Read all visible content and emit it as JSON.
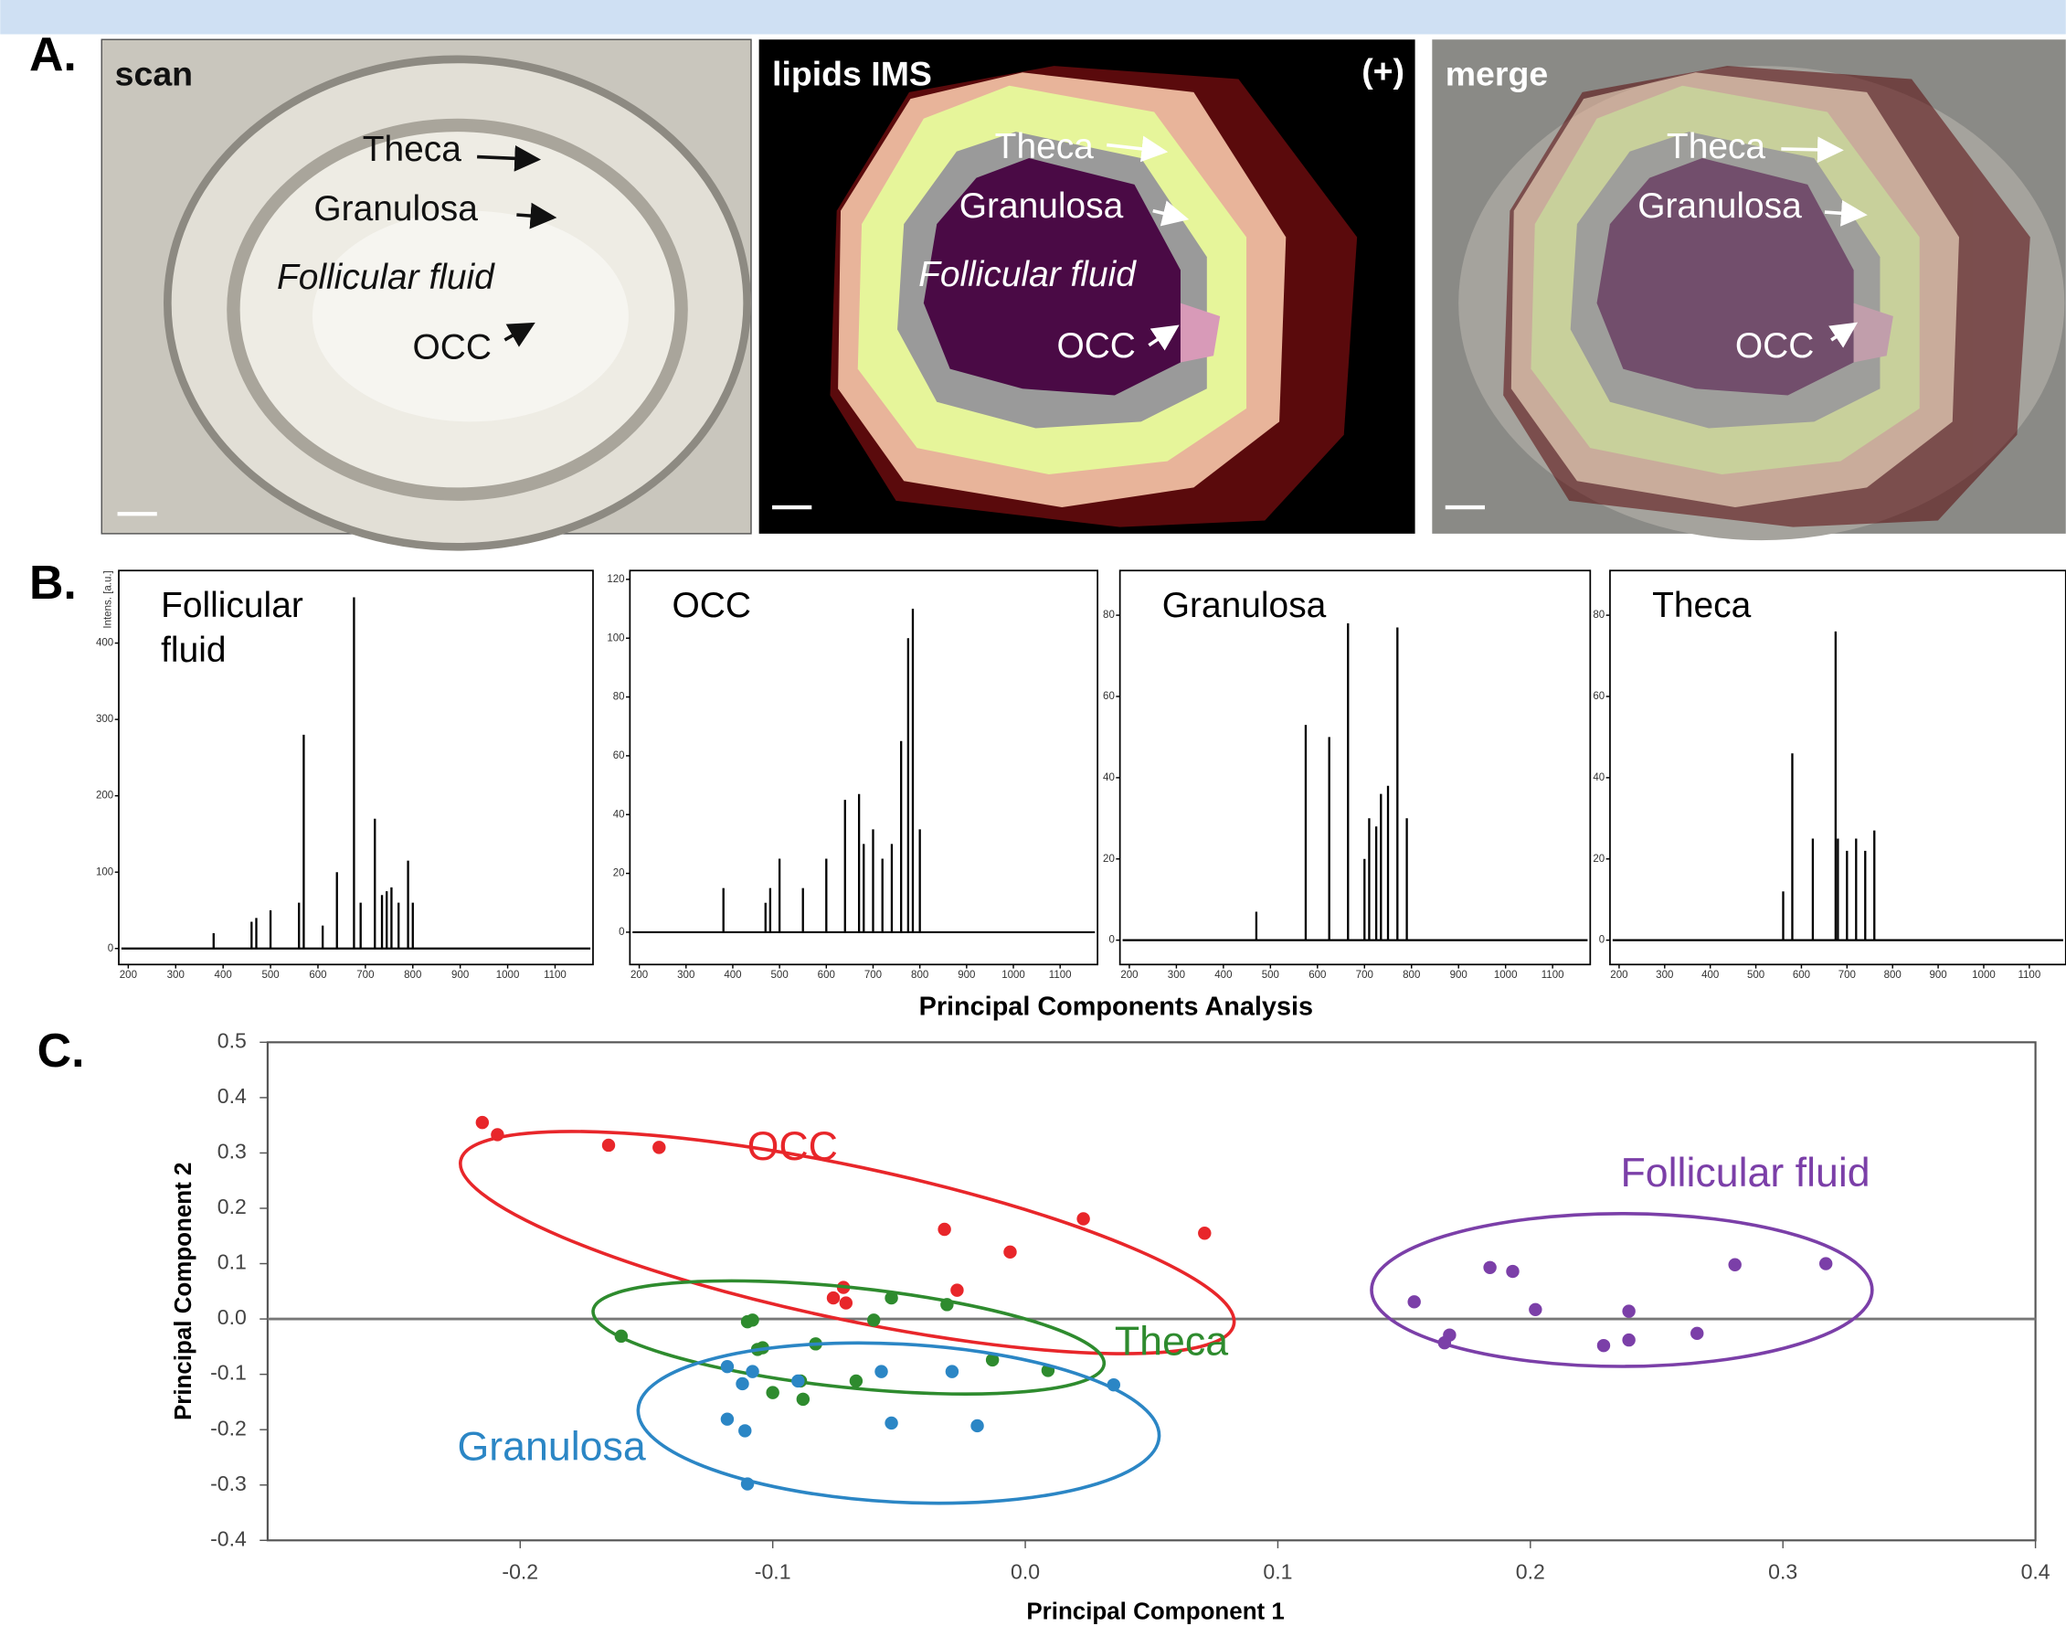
{
  "figure": {
    "panel_labels": [
      "A.",
      "B.",
      "C."
    ],
    "panels": [
      {
        "title": "scan",
        "labels": [
          "Theca",
          "Granulosa",
          "Follicular fluid",
          "OCC"
        ]
      },
      {
        "title": "lipids IMS",
        "tag": "(+)",
        "labels": [
          "Theca",
          "Granulosa",
          "Follicular fluid",
          "OCC"
        ]
      },
      {
        "title": "merge",
        "labels": [
          "Theca",
          "Granulosa",
          "OCC"
        ]
      }
    ]
  },
  "chart_data": [
    {
      "type": "spectrum",
      "title_lines": [
        "Follicular",
        "fluid"
      ],
      "ylabel": "Intens. [a.u.]",
      "color": "#000000",
      "x": [
        380,
        460,
        470,
        500,
        560,
        570,
        610,
        640,
        676,
        690,
        720,
        735,
        745,
        755,
        770,
        790,
        800
      ],
      "values": [
        20,
        35,
        40,
        50,
        60,
        280,
        30,
        100,
        460,
        60,
        170,
        70,
        75,
        80,
        60,
        115,
        60
      ],
      "xlim": [
        180,
        1180
      ],
      "ylim": [
        -21,
        495
      ],
      "xticks": [
        200,
        300,
        400,
        500,
        600,
        700,
        800,
        900,
        1000,
        1100
      ],
      "yticks": [
        0,
        100,
        200,
        300,
        400
      ]
    },
    {
      "type": "spectrum",
      "title_lines": [
        "OCC"
      ],
      "color": "#000000",
      "x": [
        380,
        470,
        480,
        500,
        550,
        600,
        640,
        670,
        680,
        700,
        720,
        740,
        760,
        775,
        785,
        800
      ],
      "values": [
        15,
        10,
        15,
        25,
        15,
        25,
        45,
        47,
        30,
        35,
        25,
        30,
        65,
        100,
        110,
        35
      ],
      "xlim": [
        180,
        1180
      ],
      "ylim": [
        -11,
        123
      ],
      "xticks": [
        200,
        300,
        400,
        500,
        600,
        700,
        800,
        900,
        1000,
        1100
      ],
      "yticks": [
        0,
        20,
        40,
        60,
        80,
        100,
        120
      ]
    },
    {
      "type": "spectrum",
      "title_lines": [
        "Granulosa"
      ],
      "color": "#000000",
      "x": [
        470,
        575,
        625,
        665,
        700,
        710,
        725,
        735,
        750,
        770,
        790
      ],
      "values": [
        7,
        53,
        50,
        78,
        20,
        30,
        28,
        36,
        38,
        77,
        30
      ],
      "xlim": [
        180,
        1180
      ],
      "ylim": [
        -6,
        91
      ],
      "xticks": [
        200,
        300,
        400,
        500,
        600,
        700,
        800,
        900,
        1000,
        1100
      ],
      "yticks": [
        0,
        20,
        40,
        60,
        80
      ]
    },
    {
      "type": "spectrum",
      "title_lines": [
        "Theca"
      ],
      "color": "#000000",
      "x": [
        560,
        580,
        625,
        675,
        680,
        700,
        720,
        740,
        760
      ],
      "values": [
        12,
        46,
        25,
        76,
        25,
        22,
        25,
        22,
        27
      ],
      "xlim": [
        180,
        1180
      ],
      "ylim": [
        -6,
        91
      ],
      "xticks": [
        200,
        300,
        400,
        500,
        600,
        700,
        800,
        900,
        1000,
        1100
      ],
      "yticks": [
        0,
        20,
        40,
        60,
        80
      ]
    },
    {
      "type": "scatter",
      "title": "Principal Components Analysis",
      "xlabel": "Principal Component 1",
      "ylabel": "Principal Component 2",
      "xlim": [
        -0.3,
        0.4
      ],
      "ylim": [
        -0.4,
        0.5
      ],
      "hline": 0,
      "xticks": [
        -0.2,
        -0.1,
        {
          "value": 0,
          "label": "0.0"
        },
        0.1,
        0.2,
        0.3,
        0.4
      ],
      "yticks": [
        -0.4,
        -0.3,
        -0.2,
        -0.1,
        {
          "value": 0,
          "label": "0.0"
        },
        0.1,
        0.2,
        0.3,
        0.4,
        0.5
      ],
      "series": [
        {
          "name": "OCC",
          "color": "#e8262a",
          "x": [
            -0.215,
            -0.209,
            -0.165,
            -0.145,
            -0.032,
            -0.006,
            0.023,
            0.071,
            -0.027,
            -0.072,
            -0.076,
            -0.071
          ],
          "values": [
            0.355,
            0.333,
            0.314,
            0.31,
            0.162,
            0.121,
            0.181,
            0.155,
            0.052,
            0.057,
            0.038,
            0.029
          ]
        },
        {
          "name": "Theca",
          "color": "#2e8b2e",
          "x": [
            -0.16,
            -0.11,
            -0.108,
            -0.104,
            -0.106,
            -0.083,
            -0.06,
            -0.053,
            -0.031,
            -0.013,
            0.009,
            -0.067,
            -0.088,
            -0.1,
            -0.089
          ],
          "values": [
            -0.031,
            -0.005,
            -0.002,
            -0.052,
            -0.055,
            -0.045,
            -0.002,
            0.038,
            0.026,
            -0.074,
            -0.093,
            -0.112,
            -0.145,
            -0.133,
            -0.112
          ]
        },
        {
          "name": "Granulosa",
          "color": "#2b86c5",
          "x": [
            -0.118,
            -0.108,
            -0.112,
            -0.118,
            -0.111,
            -0.11,
            -0.09,
            -0.057,
            -0.029,
            -0.053,
            -0.019,
            0.035
          ],
          "values": [
            -0.086,
            -0.095,
            -0.117,
            -0.181,
            -0.202,
            -0.298,
            -0.112,
            -0.095,
            -0.095,
            -0.188,
            -0.193,
            -0.119
          ]
        },
        {
          "name": "Follicular fluid",
          "color": "#7b3fa8",
          "x": [
            0.154,
            0.184,
            0.193,
            0.202,
            0.168,
            0.166,
            0.229,
            0.239,
            0.239,
            0.266,
            0.281,
            0.317
          ],
          "values": [
            0.031,
            0.093,
            0.086,
            0.017,
            -0.029,
            -0.043,
            -0.048,
            0.014,
            -0.038,
            -0.026,
            0.098,
            0.1
          ]
        }
      ]
    }
  ]
}
